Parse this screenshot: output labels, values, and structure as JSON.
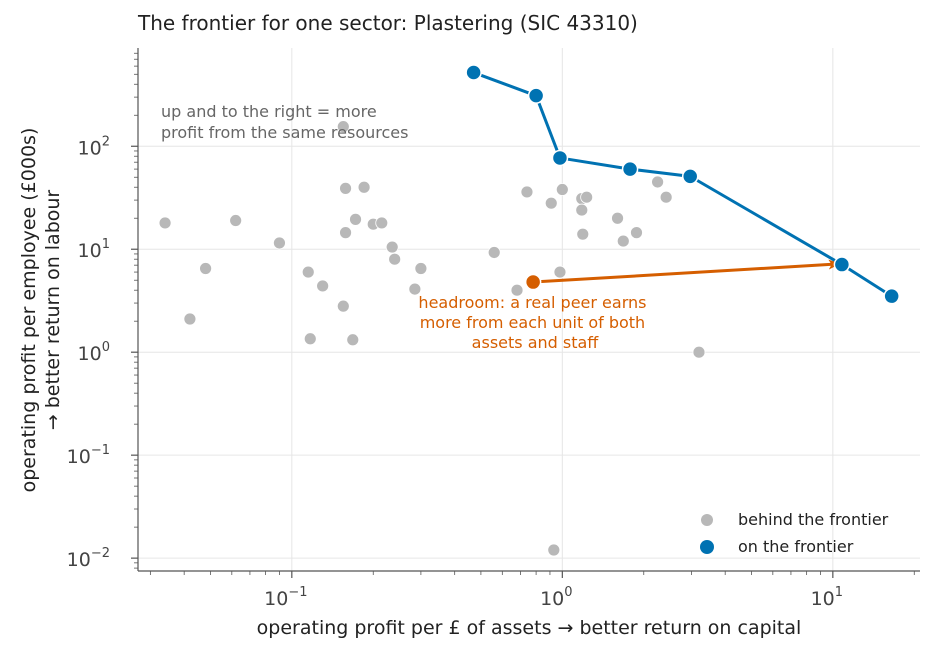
{
  "chart_data": {
    "type": "scatter",
    "title": "The frontier for one sector: Plastering (SIC 43310)",
    "xlabel": "operating profit per £ of assets  →  better return on capital",
    "ylabel_line1": "operating profit per employee (£000s)",
    "ylabel_line2": "→ better return on labour",
    "x_scale": "log",
    "y_scale": "log",
    "xlim": [
      0.027,
      21
    ],
    "ylim": [
      0.0075,
      900
    ],
    "x_ticks": [
      {
        "value": 0.1,
        "base": "10",
        "exp": "−1"
      },
      {
        "value": 1,
        "base": "10",
        "exp": "0"
      },
      {
        "value": 10,
        "base": "10",
        "exp": "1"
      }
    ],
    "y_ticks": [
      {
        "value": 0.01,
        "base": "10",
        "exp": "−2"
      },
      {
        "value": 0.1,
        "base": "10",
        "exp": "−1"
      },
      {
        "value": 1,
        "base": "10",
        "exp": "0"
      },
      {
        "value": 10,
        "base": "10",
        "exp": "1"
      },
      {
        "value": 100,
        "base": "10",
        "exp": "2"
      }
    ],
    "grid": true,
    "legend_position": "bottom-right",
    "colors": {
      "behind": "#b8b8b8",
      "frontier": "#0072b2",
      "highlight": "#d55e00",
      "axis": "#555555",
      "grid": "#e6e6e6",
      "note": "#666666"
    },
    "series": [
      {
        "name": "behind the frontier",
        "points": [
          [
            0.034,
            18
          ],
          [
            0.042,
            2.1
          ],
          [
            0.048,
            6.5
          ],
          [
            0.062,
            19
          ],
          [
            0.09,
            11.5
          ],
          [
            0.115,
            6
          ],
          [
            0.117,
            1.35
          ],
          [
            0.13,
            4.4
          ],
          [
            0.155,
            2.8
          ],
          [
            0.155,
            155
          ],
          [
            0.158,
            14.5
          ],
          [
            0.158,
            39
          ],
          [
            0.168,
            1.32
          ],
          [
            0.172,
            19.5
          ],
          [
            0.185,
            40
          ],
          [
            0.2,
            17.5
          ],
          [
            0.215,
            18
          ],
          [
            0.235,
            10.5
          ],
          [
            0.24,
            8
          ],
          [
            0.285,
            4.1
          ],
          [
            0.3,
            6.5
          ],
          [
            0.56,
            9.3
          ],
          [
            0.68,
            4
          ],
          [
            0.74,
            36
          ],
          [
            0.91,
            28
          ],
          [
            0.93,
            0.012
          ],
          [
            0.98,
            6
          ],
          [
            1.0,
            38
          ],
          [
            1.18,
            31
          ],
          [
            1.18,
            24
          ],
          [
            1.19,
            14
          ],
          [
            1.23,
            32
          ],
          [
            1.6,
            20
          ],
          [
            1.68,
            12
          ],
          [
            1.88,
            14.5
          ],
          [
            2.25,
            45
          ],
          [
            2.42,
            32
          ],
          [
            3.2,
            1.0
          ]
        ]
      },
      {
        "name": "on the frontier",
        "points": [
          [
            0.47,
            520
          ],
          [
            0.8,
            310
          ],
          [
            0.98,
            77
          ],
          [
            1.78,
            60
          ],
          [
            2.97,
            51
          ],
          [
            10.8,
            7.1
          ],
          [
            16.5,
            3.5
          ]
        ]
      }
    ],
    "highlight_point": [
      0.78,
      4.8
    ],
    "arrow": {
      "from": [
        0.78,
        4.8
      ],
      "to": [
        10.5,
        7.2
      ]
    },
    "annotations": [
      {
        "text": [
          "up and to the right = more",
          "profit from the same resources"
        ],
        "color": "note"
      },
      {
        "text": [
          "headroom: a real peer earns",
          "more from each unit of both",
          "assets and staff"
        ],
        "color": "highlight"
      }
    ]
  }
}
